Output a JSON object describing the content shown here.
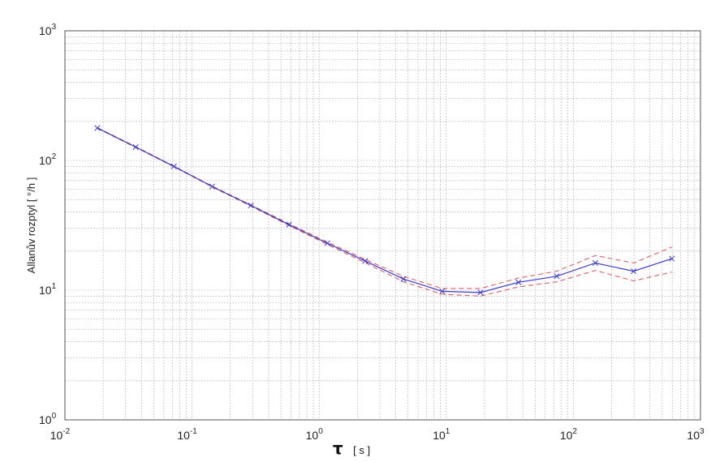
{
  "chart_data": {
    "type": "line",
    "xscale": "log",
    "yscale": "log",
    "xlim": [
      0.01,
      1000
    ],
    "ylim": [
      1,
      1000
    ],
    "grid": true,
    "ylabel": "Allanův rozptyl [ °/h ]",
    "xlabel": {
      "symbol": "τ",
      "unit": "[ s ]"
    },
    "x_ticks": [
      {
        "base": "10",
        "exp": "-2"
      },
      {
        "base": "10",
        "exp": "-1"
      },
      {
        "base": "10",
        "exp": "0"
      },
      {
        "base": "10",
        "exp": "1"
      },
      {
        "base": "10",
        "exp": "2"
      },
      {
        "base": "10",
        "exp": "3"
      }
    ],
    "y_ticks": [
      {
        "base": "10",
        "exp": "0"
      },
      {
        "base": "10",
        "exp": "1"
      },
      {
        "base": "10",
        "exp": "2"
      },
      {
        "base": "10",
        "exp": "3"
      }
    ],
    "x": [
      0.018,
      0.036,
      0.072,
      0.144,
      0.29,
      0.58,
      1.16,
      2.3,
      4.6,
      9.3,
      18.6,
      37,
      74,
      149,
      298,
      596
    ],
    "series": [
      {
        "role": "estimate",
        "color": "#3a3ad0",
        "style": "solid",
        "marker": "x",
        "values": [
          178,
          127,
          90,
          63,
          45,
          32,
          23,
          16.8,
          12.2,
          9.8,
          9.6,
          11.5,
          12.8,
          16.2,
          14.0,
          17.5
        ]
      },
      {
        "role": "upper-bound",
        "color": "#e06060",
        "style": "dashed",
        "values": [
          179,
          128,
          90.5,
          63.5,
          45.5,
          32.5,
          23.5,
          17.3,
          12.8,
          10.3,
          10.3,
          12.4,
          14.0,
          18.5,
          16.2,
          21.5
        ]
      },
      {
        "role": "lower-bound",
        "color": "#e06060",
        "style": "dashed",
        "values": [
          177,
          126,
          89.5,
          62.5,
          44.5,
          31.5,
          22.5,
          16.3,
          11.6,
          9.3,
          9.0,
          10.6,
          11.6,
          14.2,
          11.8,
          13.8
        ]
      }
    ]
  }
}
